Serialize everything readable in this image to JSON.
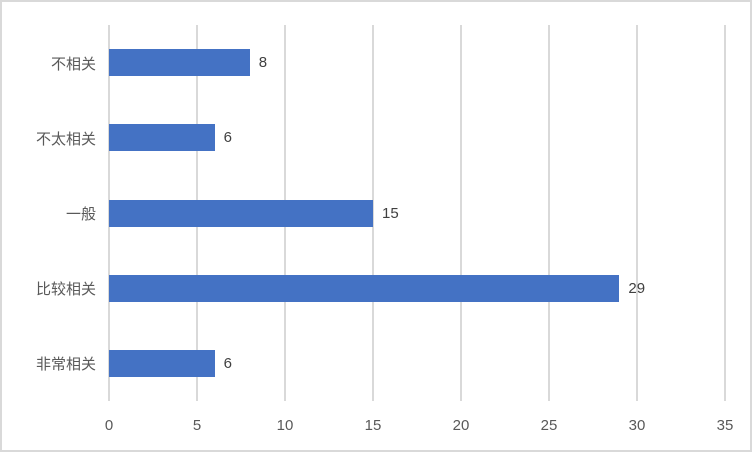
{
  "chart_data": {
    "type": "bar",
    "orientation": "horizontal",
    "title": "",
    "xlabel": "",
    "ylabel": "",
    "categories": [
      "不相关",
      "不太相关",
      "一般",
      "比较相关",
      "非常相关"
    ],
    "values": [
      8,
      6,
      15,
      29,
      6
    ],
    "data_labels": [
      "8",
      "6",
      "15",
      "29",
      "6"
    ],
    "x_ticks": [
      "0",
      "5",
      "10",
      "15",
      "20",
      "25",
      "30",
      "35"
    ],
    "xlim": [
      0,
      35
    ],
    "grid": "vertical",
    "legend": "none",
    "colors": {
      "bar": "#4472C4",
      "gridline": "#D9D9D9",
      "axis_text": "#595959",
      "data_label_text": "#404040",
      "border": "#D9D9D9",
      "background": "#FFFFFF"
    }
  }
}
